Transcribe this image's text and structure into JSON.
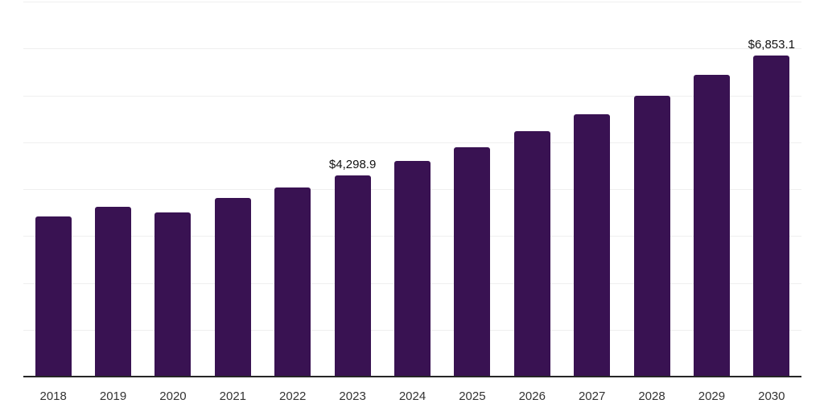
{
  "chart_data": {
    "type": "bar",
    "title": "",
    "xlabel": "",
    "ylabel": "",
    "categories": [
      "2018",
      "2019",
      "2020",
      "2021",
      "2022",
      "2023",
      "2024",
      "2025",
      "2026",
      "2027",
      "2028",
      "2029",
      "2030"
    ],
    "values": [
      3410,
      3615,
      3505,
      3810,
      4040,
      4298.9,
      4600,
      4900,
      5235,
      5600,
      5990,
      6430,
      6853.1
    ],
    "data_labels": [
      {
        "index": 5,
        "text": "$4,298.9"
      },
      {
        "index": 12,
        "text": "$6,853.1"
      }
    ],
    "ylim": [
      0,
      8000
    ],
    "gridline_interval": 1000,
    "grid": true,
    "y_tick_labels_shown": false,
    "legend": "none",
    "colors": {
      "bar": "#391252",
      "axis_line": "#262626",
      "gridline": "#efefef",
      "tick_label": "#333333",
      "data_label": "#111111"
    }
  }
}
